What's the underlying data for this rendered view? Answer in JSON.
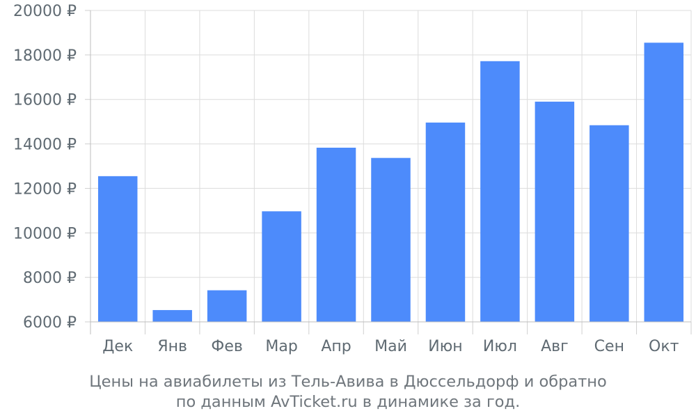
{
  "chart_data": {
    "type": "bar",
    "categories": [
      "Дек",
      "Янв",
      "Фев",
      "Мар",
      "Апр",
      "Май",
      "Июн",
      "Июл",
      "Авг",
      "Сен",
      "Окт"
    ],
    "values": [
      12550,
      6530,
      7420,
      10970,
      13830,
      13370,
      14960,
      17720,
      15900,
      14840,
      18550
    ],
    "ylim": [
      6000,
      20000
    ],
    "yticks": [
      6000,
      8000,
      10000,
      12000,
      14000,
      16000,
      18000,
      20000
    ],
    "currency": "₽",
    "bar_color": "#4d8bfb",
    "grid": true,
    "caption_line1": "Цены на авиабилеты из Тель-Авива в Дюссельдорф и обратно",
    "caption_line2": "по данным AvTicket.ru в динамике за год."
  }
}
